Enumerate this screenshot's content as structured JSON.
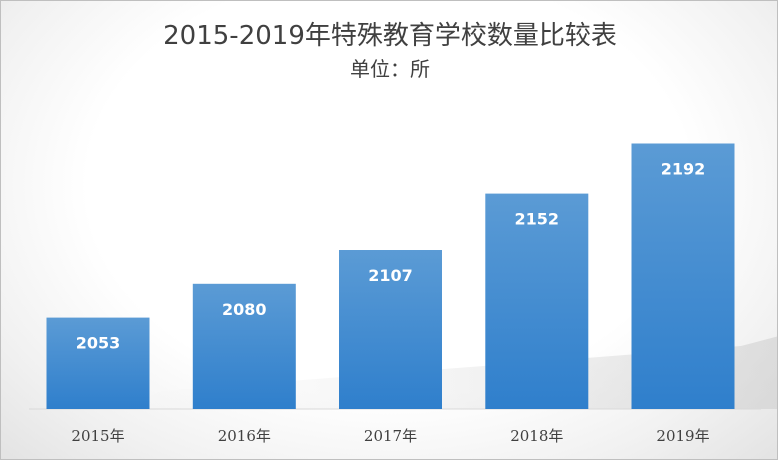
{
  "chart_data": {
    "type": "bar",
    "title": "2015-2019年特殊教育学校数量比较表",
    "subtitle": "单位：所",
    "categories": [
      "2015年",
      "2016年",
      "2017年",
      "2018年",
      "2019年"
    ],
    "values": [
      2053,
      2080,
      2107,
      2152,
      2192
    ],
    "ylim": [
      1980,
      2210
    ],
    "grid": false,
    "legend": "none",
    "bar_color": "#3c87d2"
  }
}
